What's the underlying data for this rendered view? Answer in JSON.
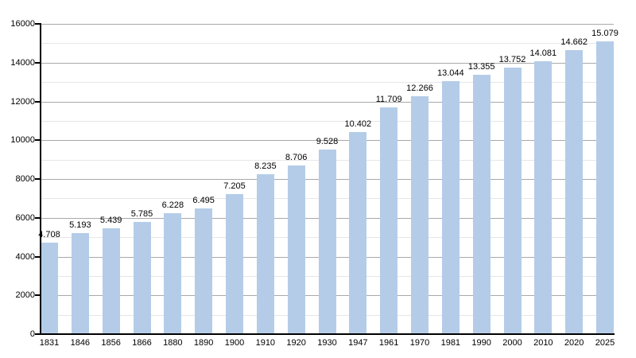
{
  "chart_data": {
    "type": "bar",
    "title": "",
    "xlabel": "",
    "ylabel": "",
    "categories": [
      "1831",
      "1846",
      "1856",
      "1866",
      "1880",
      "1890",
      "1900",
      "1910",
      "1920",
      "1930",
      "1947",
      "1961",
      "1970",
      "1981",
      "1990",
      "2000",
      "2010",
      "2020",
      "2025"
    ],
    "values": [
      4708,
      5193,
      5439,
      5785,
      6228,
      6495,
      7205,
      8235,
      8706,
      9528,
      10402,
      11709,
      12266,
      13044,
      13355,
      13752,
      14081,
      14662,
      15079
    ],
    "value_labels": [
      "4.708",
      "5.193",
      "5.439",
      "5.785",
      "6.228",
      "6.495",
      "7.205",
      "8.235",
      "8.706",
      "9.528",
      "10.402",
      "11.709",
      "12.266",
      "13.044",
      "13.355",
      "13.752",
      "14.081",
      "14.662",
      "15.079"
    ],
    "ylim": [
      0,
      16000
    ],
    "y_major_step": 2000,
    "y_minor_step": 1000,
    "y_tick_labels": [
      "0",
      "2000",
      "4000",
      "6000",
      "8000",
      "10000",
      "12000",
      "14000",
      "16000"
    ],
    "grid": true,
    "legend": null,
    "colors": {
      "bar_fill": "#b4cce8",
      "major_gridline": "#a9a9a9",
      "minor_gridline": "#e6e6e6",
      "axis": "#000000",
      "text": "#000000"
    }
  }
}
